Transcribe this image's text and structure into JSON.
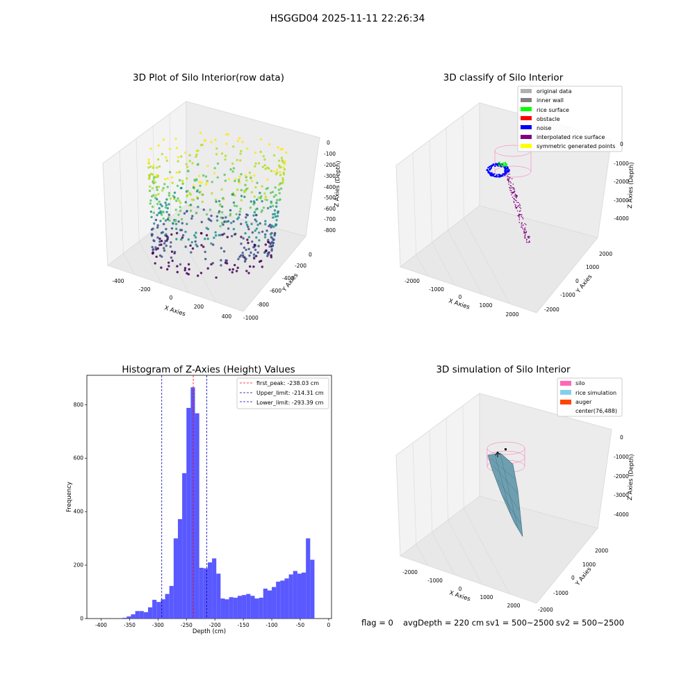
{
  "suptitle": "HSGGD04 2025-11-11 22:26:34",
  "status_text": {
    "flag": "flag = 0",
    "avg": "avgDepth = 220 cm",
    "sv1": "sv1 = 500~2500",
    "sv2": "sv2 = 500~2500"
  },
  "colors": {
    "hist_bar": "#5050ff",
    "first_peak": "#ff0000",
    "limit_lines": "#0000aa",
    "silo": "#ff69b4",
    "rice_simulation": "#87ceeb",
    "auger": "#ff4500",
    "surface_dark": "#5a8fa0"
  },
  "chart_data": [
    {
      "type": "scatter",
      "subtype": "3d-scatter",
      "title": "3D Plot of Silo Interior(row data)",
      "xlabel": "X Axies",
      "ylabel": "Y Axies",
      "zlabel": "Z Axies (Depth)",
      "x_ticks": [
        "-400",
        "-200",
        "0",
        "200",
        "400"
      ],
      "y_ticks": [
        "-1000",
        "-800",
        "-600",
        "-400",
        "-200",
        "0"
      ],
      "z_ticks": [
        "0",
        "-100",
        "-200",
        "-300",
        "-400",
        "-500",
        "-600",
        "-700",
        "-800"
      ],
      "xlim": [
        -450,
        450
      ],
      "ylim": [
        -1000,
        100
      ],
      "zlim": [
        -850,
        50
      ],
      "colormap": "viridis",
      "grid": true
    },
    {
      "type": "scatter",
      "subtype": "3d-scatter",
      "title": "3D classify of Silo Interior",
      "xlabel": "X Axies",
      "ylabel": "Y Axies",
      "zlabel": "Z Axies (Depth)",
      "x_ticks": [
        "-2000",
        "-1000",
        "0",
        "1000",
        "2000"
      ],
      "y_ticks": [
        "-2000",
        "-1000",
        "0",
        "1000",
        "2000"
      ],
      "z_ticks": [
        "0",
        "-1000",
        "-2000",
        "-3000",
        "-4000"
      ],
      "legend_position": "top-right",
      "legend": [
        {
          "label": "original data",
          "color": "#b0b0b0"
        },
        {
          "label": "inner wall",
          "color": "#808080"
        },
        {
          "label": "rice surface",
          "color": "#00ff00"
        },
        {
          "label": "obstacle",
          "color": "#ff0000"
        },
        {
          "label": "noise",
          "color": "#0000ff"
        },
        {
          "label": "interpolated rice surface",
          "color": "#800080"
        },
        {
          "label": "symmetric generated points",
          "color": "#ffff00"
        }
      ],
      "grid": true
    },
    {
      "type": "bar",
      "subtype": "histogram",
      "title": "Histogram of Z-Axies (Height) Values",
      "xlabel": "Depth (cm)",
      "ylabel": "Frequency",
      "xlim": [
        -425,
        5
      ],
      "ylim": [
        0,
        910
      ],
      "x_ticks": [
        -400,
        -350,
        -300,
        -250,
        -200,
        -150,
        -100,
        -50,
        0
      ],
      "y_ticks": [
        0,
        200,
        400,
        600,
        800
      ],
      "bin_width": 7.5,
      "bin_start": -362.5,
      "values": [
        3,
        8,
        16,
        28,
        28,
        24,
        42,
        70,
        62,
        72,
        92,
        122,
        300,
        372,
        544,
        788,
        865,
        768,
        190,
        188,
        210,
        225,
        168,
        75,
        72,
        80,
        78,
        85,
        88,
        92,
        85,
        75,
        78,
        112,
        105,
        118,
        138,
        142,
        150,
        165,
        178,
        168,
        172,
        300,
        220
      ],
      "lines": [
        {
          "label": "first_peak: -238.03 cm",
          "x": -238.03,
          "style": "dashed",
          "color": "#ff0000"
        },
        {
          "label": "Upper_limit: -214.31 cm",
          "x": -214.31,
          "style": "dashed",
          "color": "#0000aa"
        },
        {
          "label": "Lower_limit: -293.39 cm",
          "x": -293.39,
          "style": "dashed",
          "color": "#0000aa"
        }
      ],
      "legend_position": "top-right",
      "grid": false
    },
    {
      "type": "area",
      "subtype": "3d-surface",
      "title": "3D simulation of Silo Interior",
      "xlabel": "X Axies",
      "ylabel": "Y Axies",
      "zlabel": "Z Axies (Depth)",
      "x_ticks": [
        "-2000",
        "-1000",
        "0",
        "1000",
        "2000"
      ],
      "y_ticks": [
        "-2000",
        "-1000",
        "0",
        "1000",
        "2000"
      ],
      "z_ticks": [
        "0",
        "-1000",
        "-2000",
        "-3000",
        "-4000"
      ],
      "legend_position": "top-right",
      "legend": [
        {
          "label": "silo",
          "color": "#ff69b4"
        },
        {
          "label": "rice simulation",
          "color": "#87ceeb"
        },
        {
          "label": "auger",
          "color": "#ff4500"
        },
        {
          "label": "center(76,488)",
          "color": "none"
        }
      ],
      "grid": true
    }
  ]
}
